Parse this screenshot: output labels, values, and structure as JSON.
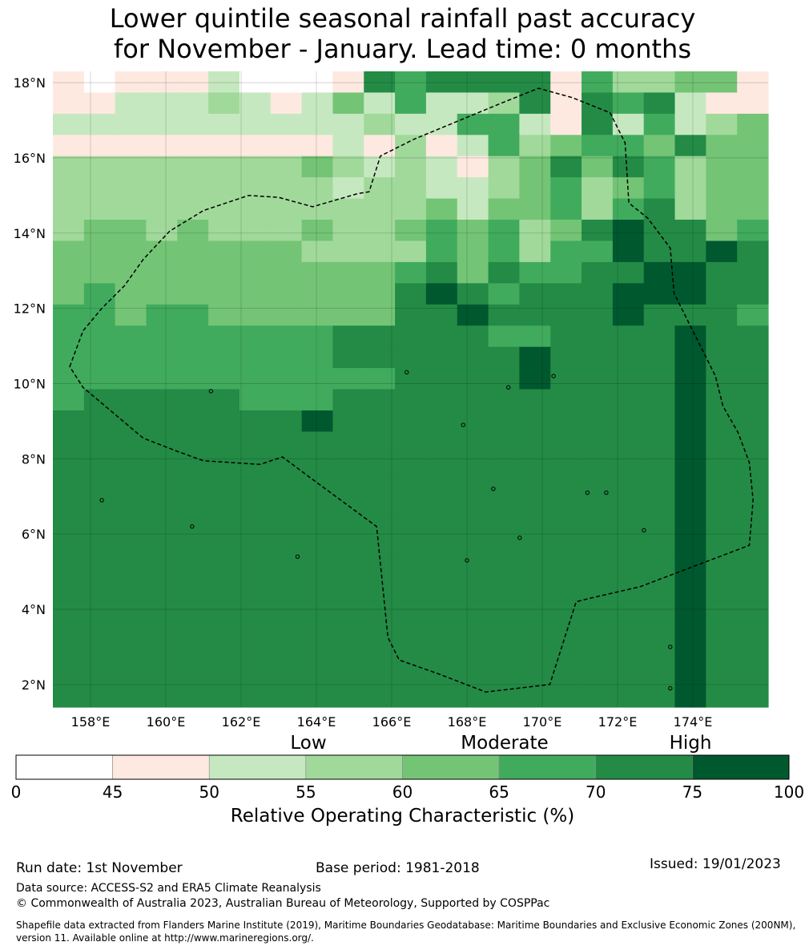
{
  "title": {
    "line1": "Lower quintile seasonal rainfall past accuracy",
    "line2": "for November - January. Lead time: 0 months"
  },
  "map": {
    "lon_range": [
      157.0,
      176.0
    ],
    "lat_range": [
      1.4,
      18.3
    ],
    "lon_ticks": [
      "158°E",
      "160°E",
      "162°E",
      "164°E",
      "166°E",
      "168°E",
      "170°E",
      "172°E",
      "174°E"
    ],
    "lat_ticks": [
      "2°N",
      "4°N",
      "6°N",
      "8°N",
      "10°N",
      "12°N",
      "14°N",
      "16°N",
      "18°N"
    ],
    "grid_columns": 23,
    "grid_rows": 30,
    "grid_levels": [
      "10111200016566661533441",
      "11222321242522361656211",
      "22222222223225521625234",
      "11111111121312534554644",
      "33333333432321346465344",
      "33333333323322345345344",
      "33333333333342445356344",
      "34434333433454534676645",
      "44444444333354535576676",
      "44444444444564655667766",
      "45444444444676566677766",
      "55455444444667666676665",
      "55555555566666556666766",
      "55555555566666676666766",
      "55555555555666676666766",
      "56666655566666666666766",
      "66666666766666666666766",
      "66666666666666666666766",
      "66666666666666666666766",
      "66666666666666666666766",
      "66666666666666666666766",
      "66666666666666666666766",
      "66666666666666666666766",
      "66666666666666666666766",
      "66666666666666666666766",
      "66666666666666666666766",
      "66666666666666666666766",
      "66666666666666666666766",
      "66666666666666666666766",
      "66666666666666666666766"
    ],
    "eez_boundary": [
      [
        157.45,
        10.45
      ],
      [
        157.8,
        11.4
      ],
      [
        158.3,
        12.0
      ],
      [
        158.9,
        12.6
      ],
      [
        159.4,
        13.3
      ],
      [
        160.1,
        14.05
      ],
      [
        161.0,
        14.6
      ],
      [
        162.2,
        15.0
      ],
      [
        163.0,
        14.95
      ],
      [
        163.9,
        14.7
      ],
      [
        165.1,
        15.05
      ],
      [
        165.4,
        15.1
      ],
      [
        165.7,
        16.05
      ],
      [
        166.6,
        16.5
      ],
      [
        168.9,
        17.45
      ],
      [
        169.9,
        17.85
      ],
      [
        170.8,
        17.6
      ],
      [
        171.8,
        17.2
      ],
      [
        172.2,
        16.4
      ],
      [
        172.3,
        14.8
      ],
      [
        172.8,
        14.4
      ],
      [
        173.4,
        13.6
      ],
      [
        173.5,
        12.4
      ],
      [
        173.9,
        11.6
      ],
      [
        174.6,
        10.2
      ],
      [
        174.8,
        9.4
      ],
      [
        175.2,
        8.7
      ],
      [
        175.5,
        7.9
      ],
      [
        175.6,
        6.9
      ],
      [
        175.5,
        5.7
      ],
      [
        172.6,
        4.6
      ],
      [
        171.3,
        4.3
      ],
      [
        170.9,
        4.2
      ],
      [
        170.2,
        2.0
      ],
      [
        168.5,
        1.8
      ],
      [
        167.2,
        2.3
      ],
      [
        166.2,
        2.65
      ],
      [
        165.9,
        3.25
      ],
      [
        165.6,
        6.2
      ],
      [
        163.7,
        7.6
      ],
      [
        163.1,
        8.05
      ],
      [
        162.5,
        7.85
      ],
      [
        161.0,
        7.95
      ],
      [
        160.3,
        8.2
      ],
      [
        159.4,
        8.55
      ],
      [
        157.8,
        9.9
      ],
      [
        157.45,
        10.45
      ]
    ],
    "islands": [
      [
        158.3,
        6.9
      ],
      [
        160.7,
        6.2
      ],
      [
        163.5,
        5.4
      ],
      [
        168.0,
        5.3
      ],
      [
        169.4,
        5.9
      ],
      [
        171.2,
        7.1
      ],
      [
        172.7,
        6.1
      ],
      [
        173.4,
        3.0
      ],
      [
        173.4,
        1.9
      ],
      [
        169.1,
        9.9
      ],
      [
        170.3,
        10.2
      ],
      [
        161.2,
        9.8
      ],
      [
        166.4,
        10.3
      ],
      [
        167.9,
        8.9
      ],
      [
        168.7,
        7.2
      ],
      [
        171.7,
        7.1
      ]
    ]
  },
  "colorbar": {
    "colors": [
      "#ffffff",
      "#fee9e0",
      "#c6e8c0",
      "#a1d99b",
      "#74c476",
      "#41ab5d",
      "#238b45",
      "#00582f"
    ],
    "ticks": [
      "0",
      "45",
      "50",
      "55",
      "60",
      "65",
      "70",
      "75",
      "100"
    ],
    "categories": {
      "low": "Low",
      "moderate": "Moderate",
      "high": "High"
    },
    "title": "Relative Operating Characteristic (%)"
  },
  "footer": {
    "run_date": "Run date: 1st November",
    "base_period": "Base period: 1981-2018",
    "issued": "Issued: 19/01/2023",
    "data_source": "Data source: ACCESS-S2 and ERA5 Climate Reanalysis",
    "copyright": "© Commonwealth of Australia 2023, Australian Bureau of Meteorology, Supported by COSPPac",
    "shapefile_note": "Shapefile data extracted from Flanders Marine Institute (2019), Maritime Boundaries Geodatabase: Maritime Boundaries and Exclusive Economic Zones (200NM), version 11. Available online at http://www.marineregions.org/."
  }
}
